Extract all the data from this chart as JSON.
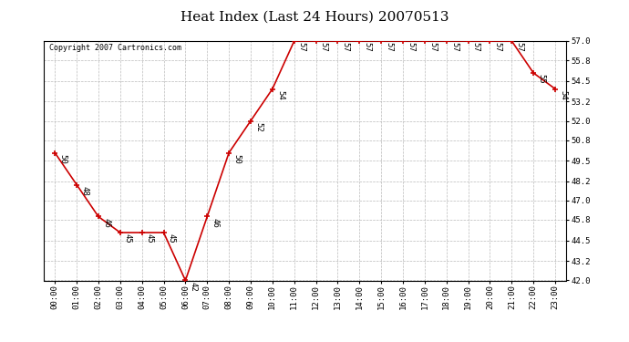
{
  "title": "Heat Index (Last 24 Hours) 20070513",
  "copyright_text": "Copyright 2007 Cartronics.com",
  "hours": [
    "00:00",
    "01:00",
    "02:00",
    "03:00",
    "04:00",
    "05:00",
    "06:00",
    "07:00",
    "08:00",
    "09:00",
    "10:00",
    "11:00",
    "12:00",
    "13:00",
    "14:00",
    "15:00",
    "16:00",
    "17:00",
    "18:00",
    "19:00",
    "20:00",
    "21:00",
    "22:00",
    "23:00"
  ],
  "values": [
    50,
    48,
    46,
    45,
    45,
    45,
    42,
    46,
    50,
    52,
    54,
    57,
    57,
    57,
    57,
    57,
    57,
    57,
    57,
    57,
    57,
    57,
    55,
    54
  ],
  "ylim": [
    42.0,
    57.0
  ],
  "yticks": [
    42.0,
    43.2,
    44.5,
    45.8,
    47.0,
    48.2,
    49.5,
    50.8,
    52.0,
    53.2,
    54.5,
    55.8,
    57.0
  ],
  "line_color": "#cc0000",
  "marker_color": "#cc0000",
  "bg_color": "#ffffff",
  "grid_color": "#bbbbbb",
  "title_fontsize": 11,
  "label_fontsize": 6.5,
  "tick_fontsize": 6.5,
  "copyright_fontsize": 6
}
